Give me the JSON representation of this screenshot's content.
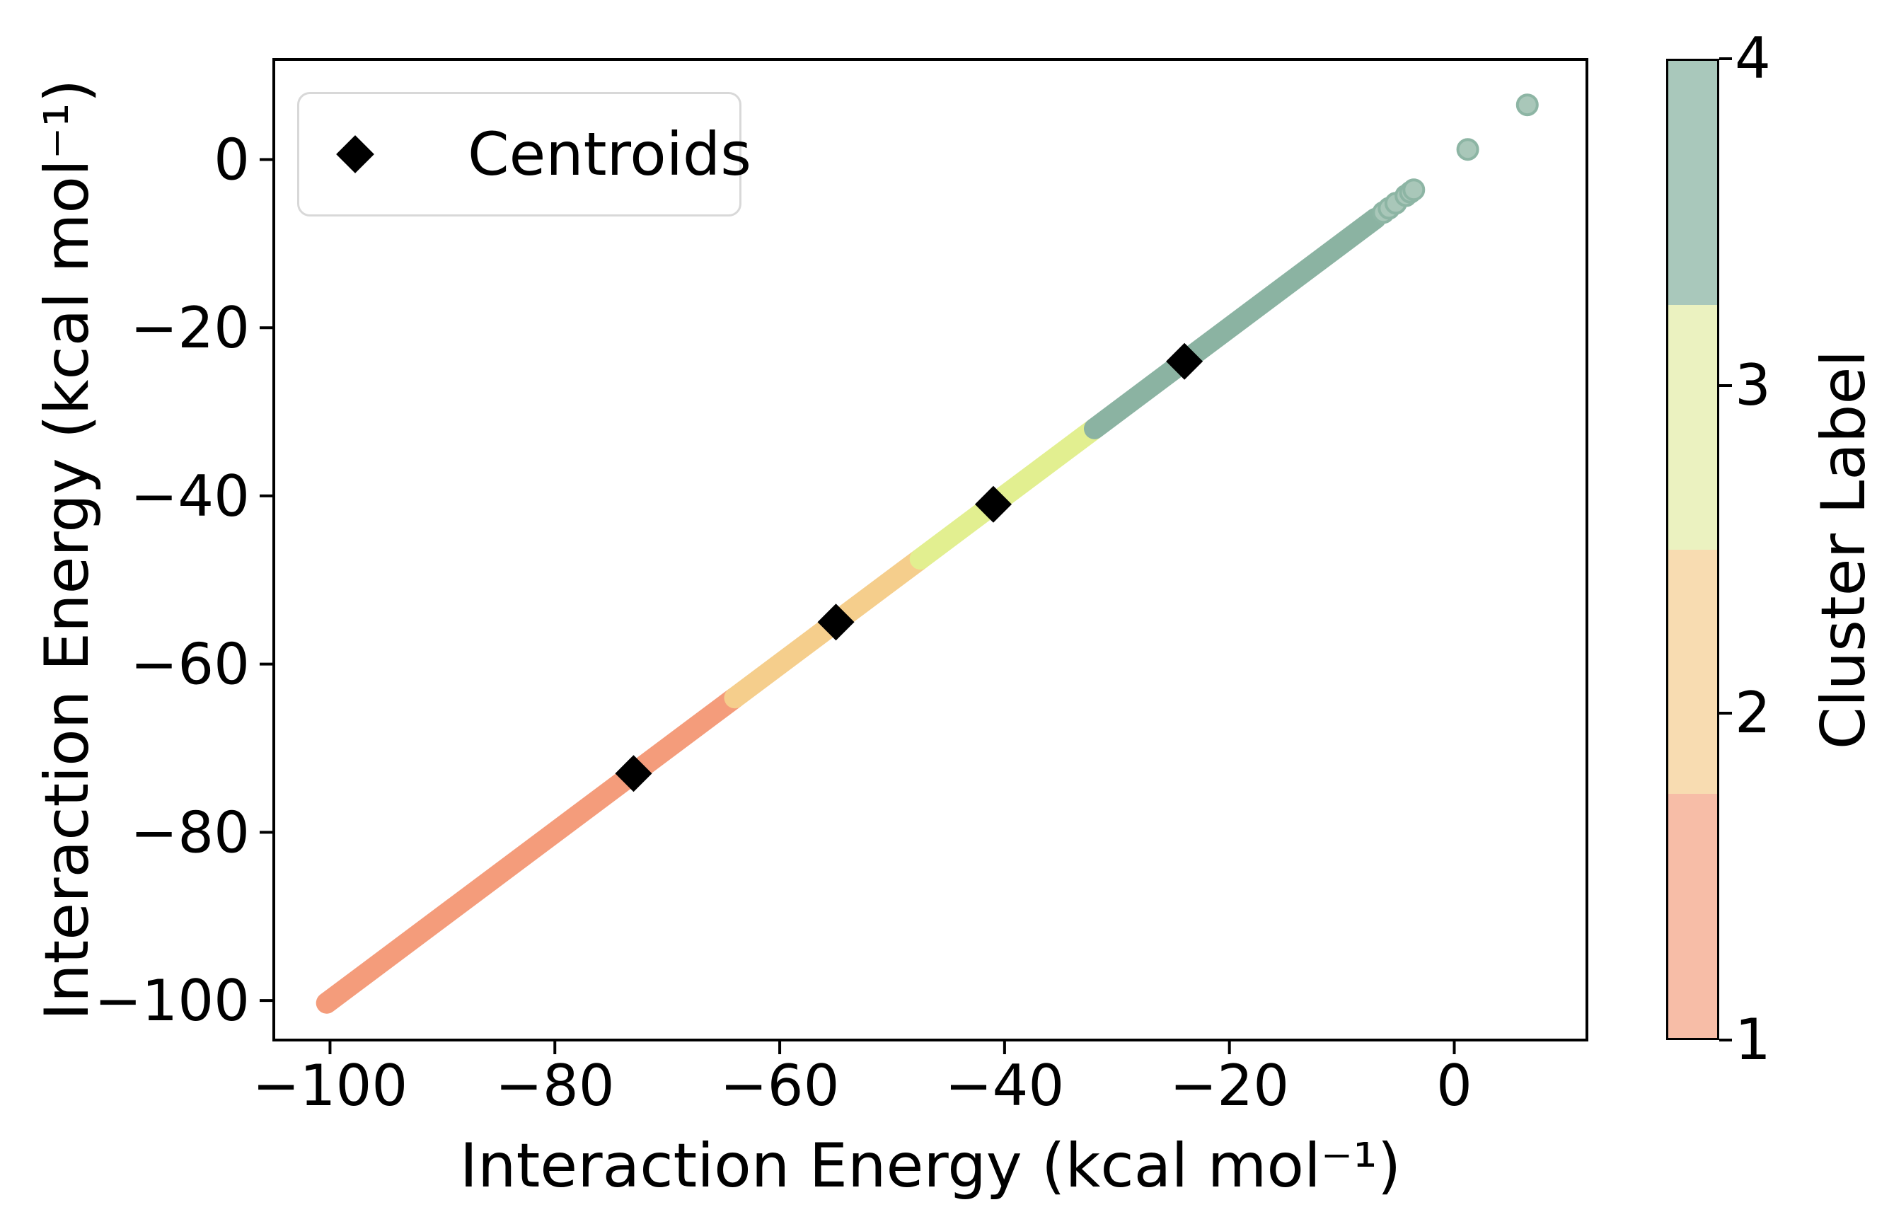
{
  "figure": {
    "background": "#ffffff",
    "legend": {
      "label": "Centroids",
      "marker": "diamond",
      "marker_color": "#000000"
    },
    "colorbar": {
      "label": "Cluster Label",
      "ticks": [
        1,
        2,
        3,
        4
      ],
      "value_range": [
        1,
        4
      ]
    }
  },
  "chart_data": {
    "type": "scatter",
    "title": "",
    "xlabel": "Interaction Energy (kcal mol⁻¹)",
    "ylabel": "Interaction Energy (kcal mol⁻¹)",
    "xlim": [
      -105,
      11.8
    ],
    "ylim": [
      -104.7,
      11.9
    ],
    "x_ticks": [
      -100,
      -80,
      -60,
      -40,
      -20,
      0
    ],
    "y_ticks": [
      0,
      -20,
      -40,
      -60,
      -80,
      -100
    ],
    "grid": false,
    "legend_position": "upper left",
    "identity_relation": "y = x (all points lie on the diagonal)",
    "clusters": [
      {
        "label": 1,
        "point_color": "#f49c7b",
        "colorbar_color": "#f7bda7",
        "segment": [
          -100.3,
          -64.0
        ]
      },
      {
        "label": 2,
        "point_color": "#f5ce8c",
        "colorbar_color": "#f8dcb1",
        "segment": [
          -64.0,
          -47.5
        ]
      },
      {
        "label": 3,
        "point_color": "#e2ef90",
        "colorbar_color": "#ebf2c0",
        "segment": [
          -47.5,
          -32.0
        ]
      },
      {
        "label": 4,
        "point_color": "#8bb3a2",
        "colorbar_color": "#a9c8bb",
        "segment": [
          -32.0,
          -7.0
        ]
      }
    ],
    "sparse_points": [
      {
        "x": -6.3,
        "y": -6.3,
        "cluster": 4
      },
      {
        "x": -5.8,
        "y": -5.8,
        "cluster": 4
      },
      {
        "x": -5.2,
        "y": -5.2,
        "cluster": 4
      },
      {
        "x": -4.3,
        "y": -4.3,
        "cluster": 4
      },
      {
        "x": -3.9,
        "y": -3.9,
        "cluster": 4
      },
      {
        "x": -3.6,
        "y": -3.6,
        "cluster": 4
      },
      {
        "x": 1.2,
        "y": 1.2,
        "cluster": 4
      },
      {
        "x": 6.5,
        "y": 6.5,
        "cluster": 4
      }
    ],
    "sparse_point_fill": "#a9c7b9",
    "sparse_point_edge": "#8db5a4",
    "centroids": [
      {
        "x": -73,
        "y": -73
      },
      {
        "x": -55,
        "y": -55
      },
      {
        "x": -41,
        "y": -41
      },
      {
        "x": -24,
        "y": -24
      }
    ],
    "centroid_color": "#000000",
    "centroid_marker": "diamond"
  }
}
